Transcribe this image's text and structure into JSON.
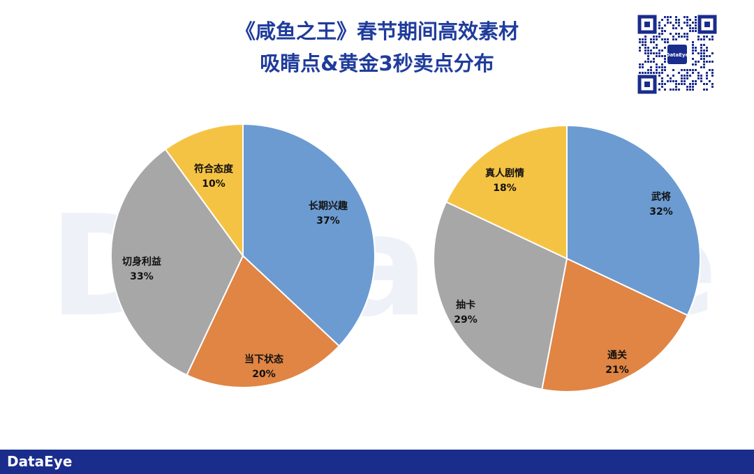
{
  "title": {
    "line1": "《咸鱼之王》春节期间高效素材",
    "line2": "吸睛点&黄金3秒卖点分布"
  },
  "watermark_text": "DataEye",
  "qr": {
    "center_text": "DataEye"
  },
  "footer": {
    "logo": "DataEye"
  },
  "chart_data": [
    {
      "type": "pie",
      "slices": [
        {
          "label": "长期兴趣",
          "value": 37,
          "pct_text": "37%",
          "color": "#6b9bd1"
        },
        {
          "label": "当下状态",
          "value": 20,
          "pct_text": "20%",
          "color": "#e08544"
        },
        {
          "label": "切身利益",
          "value": 33,
          "pct_text": "33%",
          "color": "#a7a7a7"
        },
        {
          "label": "符合态度",
          "value": 10,
          "pct_text": "10%",
          "color": "#f5c344"
        }
      ]
    },
    {
      "type": "pie",
      "slices": [
        {
          "label": "武将",
          "value": 32,
          "pct_text": "32%",
          "color": "#6b9bd1"
        },
        {
          "label": "通关",
          "value": 21,
          "pct_text": "21%",
          "color": "#e08544"
        },
        {
          "label": "抽卡",
          "value": 29,
          "pct_text": "29%",
          "color": "#a7a7a7"
        },
        {
          "label": "真人剧情",
          "value": 18,
          "pct_text": "18%",
          "color": "#f5c344"
        }
      ]
    }
  ]
}
